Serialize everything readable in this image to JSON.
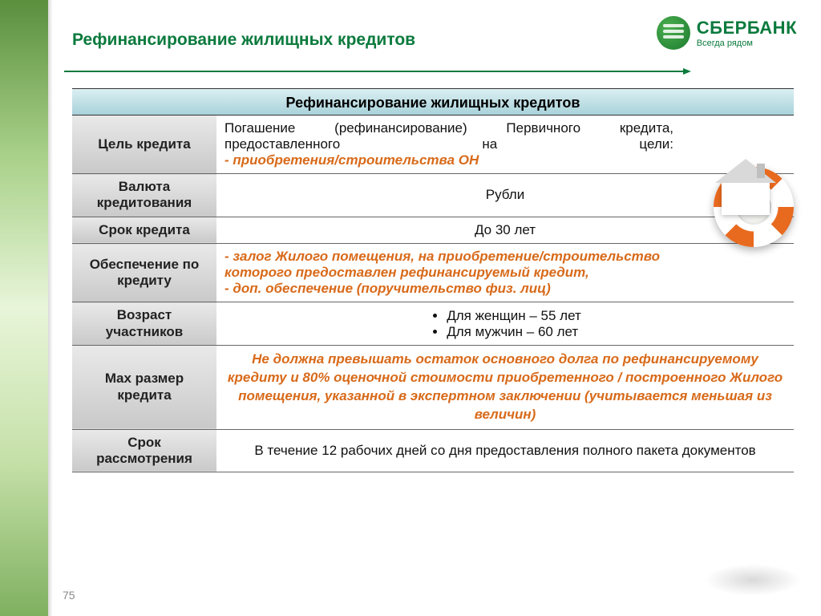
{
  "brand": {
    "name": "СБЕРБАНК",
    "tagline": "Всегда рядом",
    "primary_color": "#0b7a3d"
  },
  "slide": {
    "title": "Рефинансирование жилищных кредитов",
    "band_title": "Рефинансирование жилищных кредитов",
    "page_number": "75"
  },
  "colors": {
    "accent_text": "#d86a1a",
    "band_bg_top": "#dbeff2",
    "band_bg_bottom": "#a9d2da",
    "label_bg_top": "#e9e9e9",
    "label_bg_bottom": "#c9c9c9",
    "border": "#666666",
    "body_text": "#111111"
  },
  "typography": {
    "title_fontsize_pt": 16,
    "body_fontsize_pt": 13,
    "label_fontsize_pt": 12,
    "font_family": "Arial"
  },
  "rows": {
    "purpose": {
      "label": "Цель кредита",
      "text": "Погашение (рефинансирование) Первичного кредита, предоставленного на цели:",
      "accent": "- приобретения/строительства ОН"
    },
    "currency": {
      "label": "Валюта кредитования",
      "value": "Рубли"
    },
    "term": {
      "label": "Срок кредита",
      "value": "До 30 лет"
    },
    "collateral": {
      "label": "Обеспечение по кредиту",
      "line1": "- залог Жилого помещения, на приобретение/строительство которого предоставлен рефинансируемый кредит,",
      "line2": "- доп. обеспечение (поручительство физ. лиц)"
    },
    "age": {
      "label": "Возраст участников",
      "women": "Для женщин – 55 лет",
      "men": "Для мужчин – 60 лет"
    },
    "max_size": {
      "label": "Max размер кредита",
      "text": "Не должна превышать остаток основного долга по рефинансируемому кредиту и 80% оценочной стоимости приобретенного / построенного Жилого помещения, указанной в экспертном заключении (учитывается меньшая из величин)"
    },
    "review": {
      "label": "Срок рассмотрения",
      "value": "В течение 12 рабочих дней со дня предоставления полного пакета документов"
    }
  }
}
